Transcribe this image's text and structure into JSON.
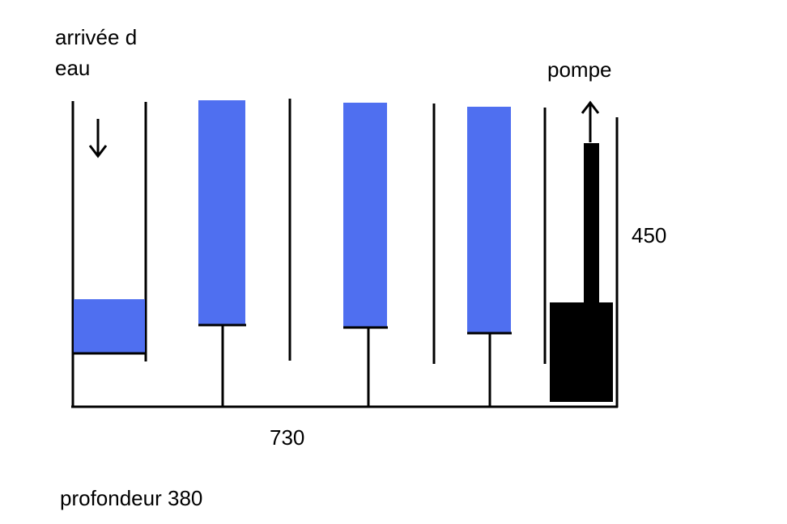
{
  "labels": {
    "inlet_line1": "arrivée d",
    "inlet_line2": "eau",
    "pump": "pompe",
    "height": "450",
    "length": "730",
    "depth": "profondeur 380"
  }
}
